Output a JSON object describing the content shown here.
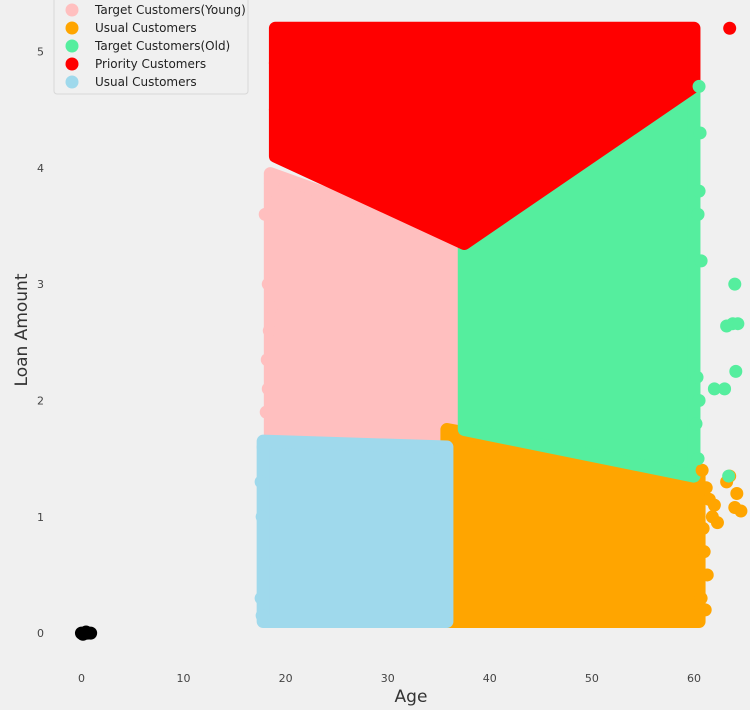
{
  "chart_data": {
    "type": "scatter",
    "title": "",
    "xlabel": "Age",
    "ylabel": "Loan Amount",
    "xlim": [
      -7,
      65
    ],
    "ylim": [
      -0.3,
      5.4
    ],
    "xticks": [
      0,
      10,
      20,
      30,
      40,
      50,
      60
    ],
    "yticks": [
      0,
      1,
      2,
      3,
      4,
      5
    ],
    "grid": false,
    "legend_position": "top-left",
    "background_color": "#f0f0f0",
    "series": [
      {
        "name": "Target Customers(Young)",
        "color": "#ffbfbf",
        "region": [
          [
            18.5,
            3.95
          ],
          [
            37.5,
            3.35
          ],
          [
            37.5,
            1.55
          ],
          [
            18.5,
            1.7
          ]
        ],
        "points": [
          [
            18,
            3.6
          ],
          [
            18.3,
            3.0
          ],
          [
            18.4,
            2.6
          ],
          [
            18.2,
            2.35
          ],
          [
            18.3,
            2.1
          ],
          [
            18.1,
            1.9
          ],
          [
            19,
            3.8
          ],
          [
            18.6,
            2.8
          ]
        ]
      },
      {
        "name": "Usual Customers",
        "color": "#ffa500",
        "region": [
          [
            35.8,
            1.75
          ],
          [
            60.5,
            1.35
          ],
          [
            60.5,
            0.1
          ],
          [
            35.8,
            0.1
          ]
        ],
        "points": [
          [
            60.8,
            1.4
          ],
          [
            61.2,
            1.25
          ],
          [
            61.5,
            1.15
          ],
          [
            61.8,
            1.0
          ],
          [
            62,
            1.1
          ],
          [
            62.3,
            0.95
          ],
          [
            63.5,
            1.35
          ],
          [
            63.2,
            1.3
          ],
          [
            64,
            1.08
          ],
          [
            64.6,
            1.05
          ],
          [
            64.2,
            1.2
          ],
          [
            61,
            0.7
          ],
          [
            61.3,
            0.5
          ],
          [
            60.7,
            0.3
          ],
          [
            61.1,
            0.2
          ],
          [
            60.9,
            0.9
          ]
        ]
      },
      {
        "name": "Target Customers(Old)",
        "color": "#55ee9e",
        "region": [
          [
            37.5,
            3.35
          ],
          [
            60.0,
            4.7
          ],
          [
            60.0,
            1.35
          ],
          [
            37.5,
            1.75
          ]
        ],
        "points": [
          [
            60.5,
            4.7
          ],
          [
            60.6,
            4.3
          ],
          [
            60.5,
            3.8
          ],
          [
            60.4,
            3.6
          ],
          [
            60.7,
            3.2
          ],
          [
            60.3,
            2.2
          ],
          [
            60.5,
            2.0
          ],
          [
            60.2,
            1.8
          ],
          [
            64,
            3.0
          ],
          [
            63.8,
            2.66
          ],
          [
            64.3,
            2.66
          ],
          [
            63.2,
            2.64
          ],
          [
            64.1,
            2.25
          ],
          [
            62,
            2.1
          ],
          [
            63,
            2.1
          ],
          [
            63.4,
            1.35
          ],
          [
            60.4,
            1.5
          ]
        ]
      },
      {
        "name": "Priority Customers",
        "color": "#ff0000",
        "region": [
          [
            19.0,
            5.2
          ],
          [
            60.0,
            5.2
          ],
          [
            60.0,
            4.7
          ],
          [
            37.5,
            3.35
          ],
          [
            19.0,
            4.1
          ]
        ],
        "points": [
          [
            63.5,
            5.2
          ],
          [
            19.0,
            4.9
          ],
          [
            19.0,
            4.5
          ],
          [
            19.1,
            4.2
          ],
          [
            59.8,
            4.9
          ],
          [
            59.5,
            4.85
          ]
        ]
      },
      {
        "name": "Usual Customers",
        "color": "#9fd9ec",
        "region": [
          [
            17.8,
            1.65
          ],
          [
            35.8,
            1.6
          ],
          [
            35.8,
            0.1
          ],
          [
            17.8,
            0.1
          ]
        ],
        "points": [
          [
            17.8,
            1.6
          ],
          [
            17.6,
            1.3
          ],
          [
            17.7,
            1.0
          ],
          [
            17.9,
            0.6
          ],
          [
            17.6,
            0.3
          ],
          [
            17.7,
            0.15
          ]
        ]
      },
      {
        "name": "",
        "color": "#000000",
        "legend": false,
        "region": null,
        "points": [
          [
            0.0,
            0.0
          ],
          [
            0.3,
            0.0
          ],
          [
            0.6,
            0.0
          ],
          [
            0.9,
            0.0
          ],
          [
            0.15,
            -0.01
          ],
          [
            0.45,
            0.01
          ]
        ]
      }
    ]
  }
}
